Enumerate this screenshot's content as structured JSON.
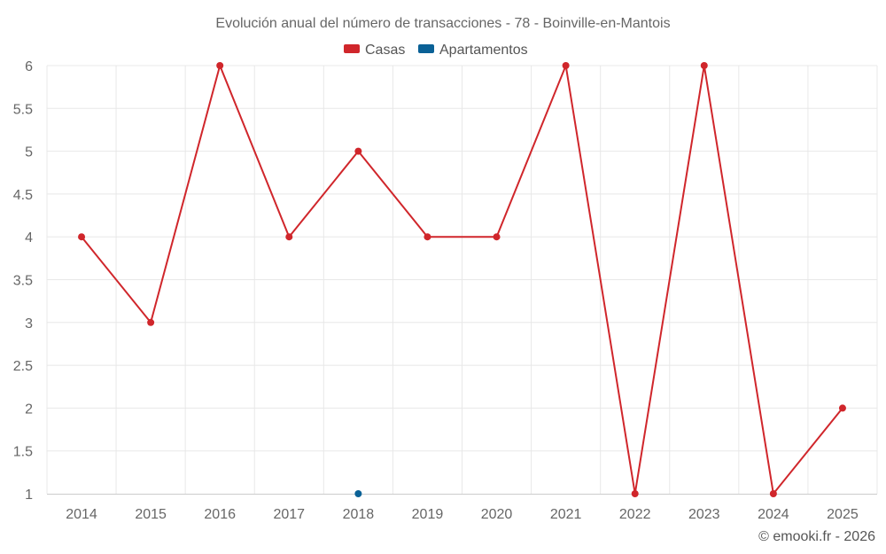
{
  "chart_data": {
    "type": "line",
    "title": "Evolución anual del número de transacciones - 78 - Boinville-en-Mantois",
    "categories": [
      "2014",
      "2015",
      "2016",
      "2017",
      "2018",
      "2019",
      "2020",
      "2021",
      "2022",
      "2023",
      "2024",
      "2025"
    ],
    "series": [
      {
        "name": "Casas",
        "color": "#d0262b",
        "values": [
          4,
          3,
          6,
          4,
          5,
          4,
          4,
          6,
          1,
          6,
          1,
          2
        ]
      },
      {
        "name": "Apartamentos",
        "color": "#0a6196",
        "values": [
          null,
          null,
          null,
          null,
          1,
          null,
          null,
          null,
          null,
          null,
          null,
          null
        ]
      }
    ],
    "yticks": [
      "1",
      "1.5",
      "2",
      "2.5",
      "3",
      "3.5",
      "4",
      "4.5",
      "5",
      "5.5",
      "6"
    ],
    "ylim": [
      1,
      6
    ],
    "xlabel": "",
    "ylabel": "",
    "grid": true,
    "legend": "top-center"
  },
  "footer": "© emooki.fr - 2026"
}
